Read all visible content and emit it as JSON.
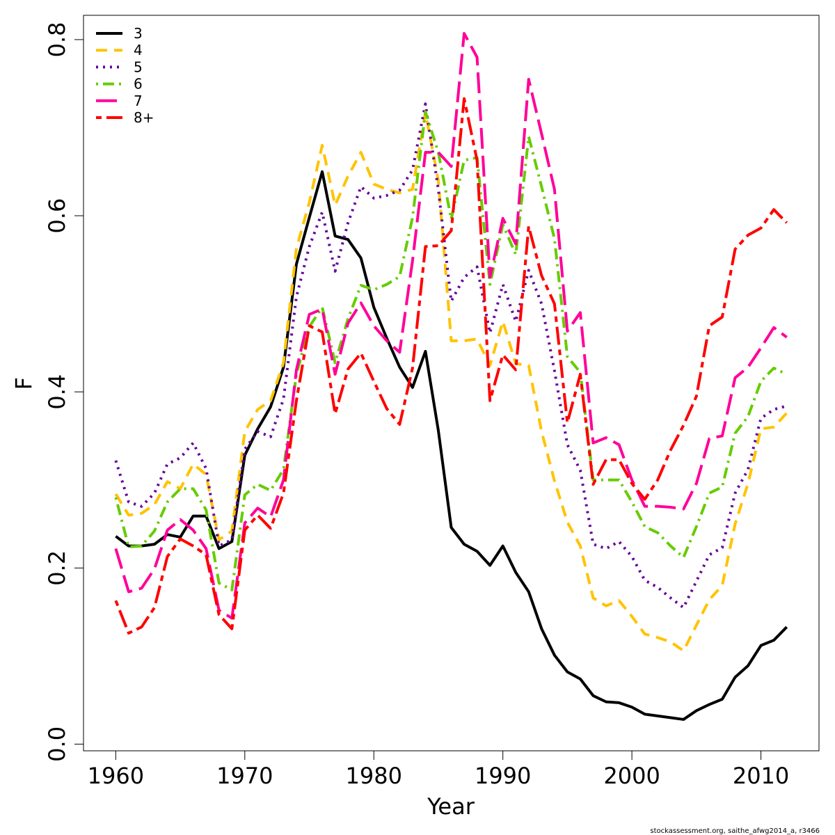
{
  "chart_data": {
    "type": "line",
    "title": "",
    "xlabel": "Year",
    "ylabel": "F",
    "xlim": [
      1957.5,
      2014.5
    ],
    "ylim": [
      -0.0076,
      0.8276
    ],
    "x_ticks": [
      1960,
      1970,
      1980,
      1990,
      2000,
      2010
    ],
    "x_tick_labels": [
      "1960",
      "1970",
      "1980",
      "1990",
      "2000",
      "2010"
    ],
    "y_ticks": [
      0.0,
      0.2,
      0.4,
      0.6,
      0.8
    ],
    "y_tick_labels": [
      "0.0",
      "0.2",
      "0.4",
      "0.6",
      "0.8"
    ],
    "grid": false,
    "legend_position": "top-left",
    "credit": "stockassessment.org, saithe_afwg2014_a, r3466",
    "x": [
      1960,
      1961,
      1962,
      1963,
      1964,
      1965,
      1966,
      1967,
      1968,
      1969,
      1970,
      1971,
      1972,
      1973,
      1974,
      1975,
      1976,
      1977,
      1978,
      1979,
      1980,
      1981,
      1982,
      1983,
      1984,
      1985,
      1986,
      1987,
      1988,
      1989,
      1990,
      1991,
      1992,
      1993,
      1994,
      1995,
      1996,
      1997,
      1998,
      1999,
      2000,
      2001,
      2002,
      2003,
      2004,
      2005,
      2006,
      2007,
      2008,
      2009,
      2010,
      2011,
      2012
    ],
    "series": [
      {
        "name": "3",
        "color": "#000000",
        "dash": "solid",
        "values": [
          0.236,
          0.225,
          0.225,
          0.227,
          0.238,
          0.235,
          0.259,
          0.259,
          0.222,
          0.23,
          0.328,
          0.358,
          0.383,
          0.428,
          0.545,
          0.598,
          0.65,
          0.577,
          0.573,
          0.552,
          0.496,
          0.461,
          0.428,
          0.405,
          0.446,
          0.356,
          0.246,
          0.227,
          0.219,
          0.203,
          0.225,
          0.195,
          0.173,
          0.131,
          0.101,
          0.082,
          0.074,
          0.055,
          0.048,
          0.047,
          0.042,
          0.034,
          0.032,
          0.03,
          0.028,
          0.038,
          0.045,
          0.051,
          0.076,
          0.089,
          0.112,
          0.118,
          0.133
        ]
      },
      {
        "name": "4",
        "color": "#FFC300",
        "dash": "dashed",
        "values": [
          0.284,
          0.26,
          0.262,
          0.272,
          0.298,
          0.29,
          0.318,
          0.306,
          0.232,
          0.242,
          0.355,
          0.38,
          0.39,
          0.433,
          0.563,
          0.615,
          0.68,
          0.612,
          0.645,
          0.672,
          0.636,
          0.63,
          0.626,
          0.63,
          0.717,
          0.64,
          0.458,
          0.458,
          0.46,
          0.43,
          0.48,
          0.432,
          0.43,
          0.355,
          0.299,
          0.252,
          0.225,
          0.166,
          0.157,
          0.163,
          0.145,
          0.125,
          0.121,
          0.116,
          0.106,
          0.135,
          0.164,
          0.18,
          0.25,
          0.296,
          0.358,
          0.36,
          0.376
        ]
      },
      {
        "name": "5",
        "color": "#660099",
        "dash": "dotted",
        "values": [
          0.322,
          0.275,
          0.27,
          0.285,
          0.318,
          0.325,
          0.342,
          0.313,
          0.225,
          0.232,
          0.335,
          0.355,
          0.349,
          0.392,
          0.508,
          0.565,
          0.604,
          0.537,
          0.592,
          0.633,
          0.62,
          0.623,
          0.629,
          0.652,
          0.727,
          0.63,
          0.503,
          0.53,
          0.542,
          0.467,
          0.522,
          0.48,
          0.538,
          0.5,
          0.424,
          0.34,
          0.311,
          0.227,
          0.222,
          0.23,
          0.213,
          0.186,
          0.178,
          0.166,
          0.155,
          0.185,
          0.215,
          0.223,
          0.285,
          0.312,
          0.37,
          0.38,
          0.384
        ]
      },
      {
        "name": "6",
        "color": "#66CC00",
        "dash": "dotdash",
        "values": [
          0.28,
          0.224,
          0.225,
          0.242,
          0.275,
          0.29,
          0.29,
          0.266,
          0.183,
          0.175,
          0.283,
          0.295,
          0.288,
          0.312,
          0.42,
          0.474,
          0.496,
          0.433,
          0.483,
          0.521,
          0.516,
          0.522,
          0.531,
          0.598,
          0.718,
          0.672,
          0.596,
          0.663,
          0.666,
          0.522,
          0.59,
          0.556,
          0.69,
          0.633,
          0.574,
          0.44,
          0.422,
          0.3,
          0.3,
          0.3,
          0.275,
          0.247,
          0.24,
          0.225,
          0.212,
          0.247,
          0.285,
          0.292,
          0.353,
          0.372,
          0.412,
          0.427,
          0.42
        ]
      },
      {
        "name": "7",
        "color": "#FF0099",
        "dash": "longdash",
        "values": [
          0.222,
          0.173,
          0.177,
          0.199,
          0.243,
          0.255,
          0.243,
          0.222,
          0.152,
          0.143,
          0.251,
          0.268,
          0.258,
          0.3,
          0.425,
          0.488,
          0.494,
          0.42,
          0.478,
          0.501,
          0.475,
          0.458,
          0.445,
          0.549,
          0.672,
          0.672,
          0.656,
          0.807,
          0.78,
          0.53,
          0.597,
          0.568,
          0.755,
          0.693,
          0.63,
          0.469,
          0.49,
          0.342,
          0.348,
          0.34,
          0.3,
          0.27,
          0.27,
          0.269,
          0.267,
          0.296,
          0.347,
          0.35,
          0.416,
          0.428,
          0.45,
          0.473,
          0.462
        ]
      },
      {
        "name": "8+",
        "color": "#FF0000",
        "dash": "twodash",
        "values": [
          0.163,
          0.126,
          0.133,
          0.155,
          0.213,
          0.233,
          0.225,
          0.215,
          0.147,
          0.131,
          0.243,
          0.26,
          0.245,
          0.285,
          0.39,
          0.475,
          0.468,
          0.375,
          0.426,
          0.444,
          0.412,
          0.381,
          0.363,
          0.427,
          0.565,
          0.566,
          0.583,
          0.733,
          0.663,
          0.39,
          0.442,
          0.425,
          0.588,
          0.532,
          0.5,
          0.365,
          0.42,
          0.295,
          0.323,
          0.323,
          0.296,
          0.278,
          0.3,
          0.334,
          0.362,
          0.395,
          0.475,
          0.485,
          0.562,
          0.578,
          0.586,
          0.607,
          0.592
        ]
      }
    ]
  }
}
